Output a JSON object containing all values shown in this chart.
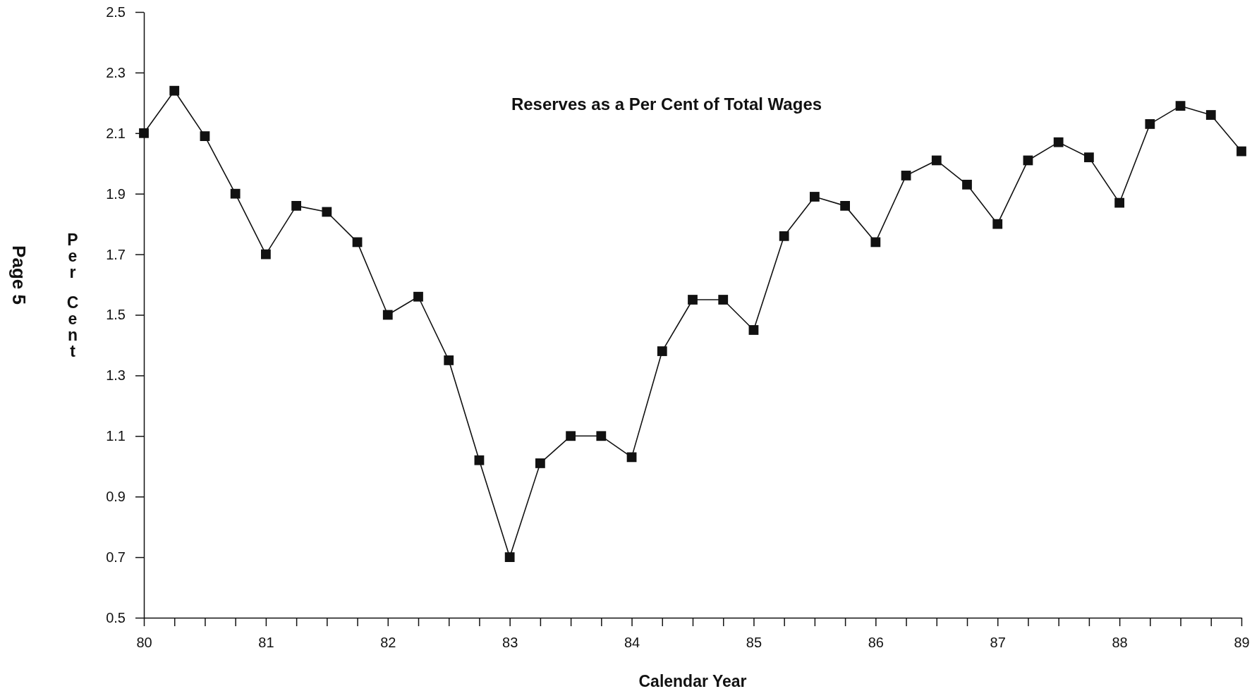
{
  "chart_data": {
    "type": "line",
    "title": "Reserves as a Per Cent of Total Wages",
    "xlabel": "Calendar Year",
    "ylabel": "Per Cent",
    "annotations": [
      "Page 5"
    ],
    "x": [
      80,
      80.25,
      80.5,
      80.75,
      81,
      81.25,
      81.5,
      81.75,
      82,
      82.25,
      82.5,
      82.75,
      83,
      83.25,
      83.5,
      83.75,
      84,
      84.25,
      84.5,
      84.75,
      85,
      85.25,
      85.5,
      85.75,
      86,
      86.25,
      86.5,
      86.75,
      87,
      87.25,
      87.5,
      87.75,
      88,
      88.25,
      88.5,
      88.75,
      89
    ],
    "series": [
      {
        "color": "#111111",
        "values": [
          2.1,
          2.24,
          2.09,
          1.9,
          1.7,
          1.86,
          1.84,
          1.74,
          1.5,
          1.56,
          1.35,
          1.02,
          0.7,
          1.01,
          1.1,
          1.1,
          1.03,
          1.38,
          1.55,
          1.55,
          1.45,
          1.76,
          1.89,
          1.86,
          1.74,
          1.96,
          2.01,
          1.93,
          1.8,
          2.01,
          2.07,
          2.02,
          1.87,
          2.13,
          2.19,
          2.16,
          2.04
        ]
      }
    ],
    "xlim": [
      80,
      89
    ],
    "xticks": [
      80,
      {
        "value": 80.25,
        "label": null
      },
      {
        "value": 80.5,
        "label": null
      },
      {
        "value": 80.75,
        "label": null
      },
      81,
      {
        "value": 81.25,
        "label": null
      },
      {
        "value": 81.5,
        "label": null
      },
      {
        "value": 81.75,
        "label": null
      },
      82,
      {
        "value": 82.25,
        "label": null
      },
      {
        "value": 82.5,
        "label": null
      },
      {
        "value": 82.75,
        "label": null
      },
      83,
      {
        "value": 83.25,
        "label": null
      },
      {
        "value": 83.5,
        "label": null
      },
      {
        "value": 83.75,
        "label": null
      },
      84,
      {
        "value": 84.25,
        "label": null
      },
      {
        "value": 84.5,
        "label": null
      },
      {
        "value": 84.75,
        "label": null
      },
      85,
      {
        "value": 85.25,
        "label": null
      },
      {
        "value": 85.5,
        "label": null
      },
      {
        "value": 85.75,
        "label": null
      },
      86,
      {
        "value": 86.25,
        "label": null
      },
      {
        "value": 86.5,
        "label": null
      },
      {
        "value": 86.75,
        "label": null
      },
      87,
      {
        "value": 87.25,
        "label": null
      },
      {
        "value": 87.5,
        "label": null
      },
      {
        "value": 87.75,
        "label": null
      },
      88,
      {
        "value": 88.25,
        "label": null
      },
      {
        "value": 88.5,
        "label": null
      },
      {
        "value": 88.75,
        "label": null
      },
      89
    ],
    "ylim": [
      0.5,
      2.5
    ],
    "yticks": [
      0.5,
      0.7,
      0.9,
      1.1,
      1.3,
      1.5,
      1.7,
      1.9,
      2.1,
      2.3,
      2.5
    ],
    "grid": false,
    "marker": "square",
    "line_style": "solid"
  }
}
